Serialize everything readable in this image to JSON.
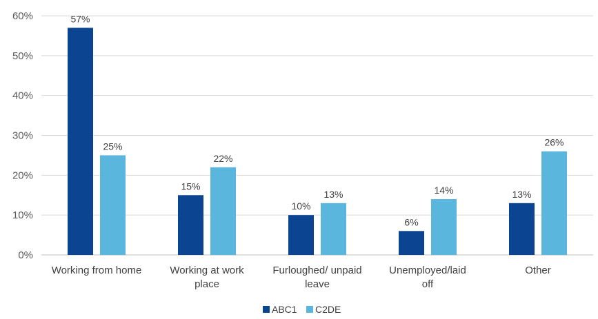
{
  "chart_data": {
    "type": "bar",
    "categories": [
      [
        "Working from home"
      ],
      [
        "Working  at work",
        "place"
      ],
      [
        "Furloughed/ unpaid",
        "leave"
      ],
      [
        "Unemployed/laid",
        "off"
      ],
      [
        "Other"
      ]
    ],
    "series": [
      {
        "name": "ABC1",
        "color": "#0b4592",
        "values": [
          57,
          15,
          10,
          6,
          13
        ],
        "labels": [
          "57%",
          "15%",
          "10%",
          "6%",
          "13%"
        ]
      },
      {
        "name": "C2DE",
        "color": "#5ab6dd",
        "values": [
          25,
          22,
          13,
          14,
          26
        ],
        "labels": [
          "25%",
          "22%",
          "13%",
          "14%",
          "26%"
        ]
      }
    ],
    "ylim": [
      0,
      60
    ],
    "yticks": [
      0,
      10,
      20,
      30,
      40,
      50,
      60
    ],
    "ytick_labels": [
      "0%",
      "10%",
      "20%",
      "30%",
      "40%",
      "50%",
      "60%"
    ],
    "grid": true,
    "legend": "bottom",
    "title": "",
    "xlabel": "",
    "ylabel": ""
  }
}
